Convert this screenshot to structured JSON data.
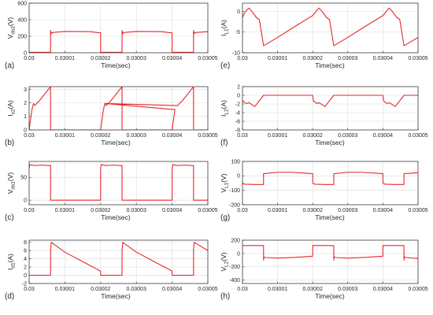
{
  "colors": {
    "trace": "#e8262a",
    "axis": "#262626",
    "grid": "#dcdcdc"
  },
  "chart_data": [
    {
      "panel": "(a)",
      "type": "line",
      "ylabel": "V",
      "ylabel_sub": "ds2",
      "ylabel_unit": "(V)",
      "xlabel": "Time(sec)",
      "xlim": [
        0.03,
        0.03005
      ],
      "ylim": [
        0,
        600
      ],
      "yticks": [
        "0",
        "200",
        "400",
        "600"
      ],
      "xticks": [
        "0.03",
        "0.03001",
        "0.03002",
        "0.03003",
        "0.03004",
        "0.03005"
      ],
      "grid": true,
      "sharp": true,
      "series": [
        {
          "x": [
            0.03,
            0.030006,
            0.030006,
            0.0300062,
            0.0300065,
            0.03001,
            0.030017,
            0.03002,
            0.03002,
            0.030026,
            0.030026,
            0.0300262,
            0.0300265,
            0.03003,
            0.030037,
            0.03004,
            0.03004,
            0.030046,
            0.030046,
            0.0300462,
            0.0300465,
            0.03005
          ],
          "y": [
            5,
            5,
            270,
            230,
            245,
            258,
            255,
            240,
            5,
            5,
            270,
            230,
            245,
            258,
            255,
            240,
            5,
            5,
            270,
            230,
            245,
            255
          ]
        }
      ]
    },
    {
      "panel": "(b)",
      "type": "line",
      "ylabel": "I",
      "ylabel_sub": "s2",
      "ylabel_unit": "(A)",
      "xlabel": "Time(sec)",
      "xlim": [
        0.03,
        0.03005
      ],
      "ylim": [
        0,
        3.2
      ],
      "yticks": [
        "0",
        "1",
        "2",
        "3"
      ],
      "xticks": [
        "0.03",
        "0.03001",
        "0.03002",
        "0.03003",
        "0.03004",
        "0.03005"
      ],
      "grid": true,
      "sharp": true,
      "series": [
        {
          "x": [
            0.03,
            0.0300003,
            0.0300008,
            0.0300012,
            0.0300016,
            0.0300022,
            0.0300027,
            0.030006,
            0.030006,
            0.03002,
            0.03002,
            0.0300203,
            0.0300208,
            0.0300212,
            0.0300216,
            0.0300222,
            0.0300227,
            0.030026,
            0.030026,
            0.03004,
            0.03004,
            0.0300403,
            0.0300408,
            0.0300212,
            0.0300416,
            0.0300422,
            0.0300427,
            0.030046,
            0.030046,
            0.03005
          ],
          "y": [
            0,
            0.6,
            1.5,
            1.95,
            1.8,
            2.0,
            2.1,
            3.2,
            0,
            0,
            0,
            0.6,
            1.5,
            1.95,
            1.8,
            2.0,
            2.1,
            3.2,
            0,
            0,
            0,
            0.6,
            1.5,
            1.95,
            1.8,
            2.0,
            2.1,
            3.2,
            0,
            0
          ]
        }
      ]
    },
    {
      "panel": "(c)",
      "type": "line",
      "ylabel": "V",
      "ylabel_sub": "ds1",
      "ylabel_unit": "(V)",
      "xlabel": "Time(sec)",
      "xlim": [
        0.03,
        0.03005
      ],
      "ylim": [
        -10,
        85
      ],
      "yticks": [
        "0",
        "50"
      ],
      "xticks": [
        "0.03",
        "0.03001",
        "0.03002",
        "0.03003",
        "0.03004",
        "0.03005"
      ],
      "grid": true,
      "sharp": true,
      "series": [
        {
          "x": [
            0.03,
            0.0300002,
            0.0300015,
            0.0300035,
            0.0300055,
            0.030006,
            0.030006,
            0.03002,
            0.03002,
            0.0300202,
            0.0300215,
            0.0300235,
            0.0300255,
            0.030026,
            0.030026,
            0.03004,
            0.03004,
            0.0300402,
            0.0300415,
            0.0300435,
            0.0300455,
            0.030046,
            0.030046,
            0.03005
          ],
          "y": [
            70,
            78,
            76,
            77,
            76,
            76,
            0,
            0,
            70,
            78,
            76,
            77,
            76,
            76,
            0,
            0,
            70,
            78,
            76,
            77,
            76,
            76,
            0,
            0
          ]
        }
      ]
    },
    {
      "panel": "(d)",
      "type": "line",
      "ylabel": "I",
      "ylabel_sub": "d1",
      "ylabel_unit": "(A)",
      "xlabel": "Time(sec)",
      "xlim": [
        0.03,
        0.03005
      ],
      "ylim": [
        -2,
        8.5
      ],
      "yticks": [
        "-2",
        "0",
        "2",
        "4",
        "6",
        "8"
      ],
      "xticks": [
        "0.03",
        "0.03001",
        "0.03002",
        "0.03003",
        "0.03004",
        "0.03005"
      ],
      "grid": true,
      "sharp": true,
      "series": [
        {
          "x": [
            0.03,
            0.030006,
            0.030006,
            0.0300062,
            0.0300065,
            0.03001,
            0.030015,
            0.03002,
            0.03002,
            0.030026,
            0.030026,
            0.0300262,
            0.0300265,
            0.03003,
            0.030035,
            0.03004,
            0.03004,
            0.030046,
            0.030046,
            0.0300462,
            0.0300465,
            0.03005
          ],
          "y": [
            0,
            0,
            6,
            8,
            7.8,
            5.6,
            3.3,
            1.0,
            0,
            0,
            6,
            8,
            7.8,
            5.6,
            3.3,
            1.0,
            0,
            0,
            6,
            8,
            7.8,
            6.0
          ]
        }
      ]
    },
    {
      "panel": "(e)",
      "type": "line",
      "ylabel": "I",
      "ylabel_sub": "L1",
      "ylabel_unit": "(A)",
      "xlabel": "Time(sec)",
      "xlim": [
        0.03,
        0.03005
      ],
      "ylim": [
        -10,
        2
      ],
      "yticks": [
        "-10",
        "-5",
        "0"
      ],
      "xticks": [
        "0.03",
        "0.03001",
        "0.03002",
        "0.03003",
        "0.03004",
        "0.03005"
      ],
      "grid": true,
      "sharp": false,
      "series": [
        {
          "x": [
            0.03,
            0.0300005,
            0.0300012,
            0.0300018,
            0.0300025,
            0.030004,
            0.0300048,
            0.030006,
            0.03001,
            0.030015,
            0.03002,
            0.0300205,
            0.0300212,
            0.0300218,
            0.0300225,
            0.030024,
            0.0300248,
            0.030026,
            0.03003,
            0.030035,
            0.03004,
            0.0300405,
            0.0300412,
            0.0300418,
            0.0300425,
            0.030044,
            0.0300448,
            0.030046,
            0.03005
          ],
          "y": [
            -1.5,
            -0.5,
            0.3,
            0.8,
            0.2,
            -1.5,
            -2.0,
            -8.3,
            -6.3,
            -3.6,
            -1.0,
            -0.5,
            0.3,
            0.8,
            0.2,
            -1.5,
            -2.0,
            -8.3,
            -6.3,
            -3.6,
            -1.0,
            -0.5,
            0.3,
            0.8,
            0.2,
            -1.5,
            -2.0,
            -8.3,
            -6.3
          ]
        }
      ]
    },
    {
      "panel": "(f)",
      "type": "line",
      "ylabel": "I",
      "ylabel_sub": "L2",
      "ylabel_unit": "(A)",
      "xlabel": "Time(sec)",
      "xlim": [
        0.03,
        0.03005
      ],
      "ylim": [
        -8,
        2
      ],
      "yticks": [
        "-8",
        "-6",
        "-4",
        "-2",
        "0",
        "2"
      ],
      "xticks": [
        "0.03",
        "0.03001",
        "0.03002",
        "0.03003",
        "0.03004",
        "0.03005"
      ],
      "grid": true,
      "sharp": false,
      "series": [
        {
          "x": [
            0.03,
            0.0300005,
            0.0300012,
            0.0300018,
            0.0300026,
            0.0300035,
            0.030006,
            0.030006,
            0.03002,
            0.0300202,
            0.0300212,
            0.0300218,
            0.0300226,
            0.0300235,
            0.030026,
            0.030026,
            0.03004,
            0.0300402,
            0.0300412,
            0.0300418,
            0.0300426,
            0.0300435,
            0.030046,
            0.030046,
            0.03005
          ],
          "y": [
            -1.2,
            -1.6,
            -1.9,
            -1.7,
            -2.1,
            -2.6,
            0,
            0,
            0,
            -1.3,
            -1.9,
            -1.7,
            -2.1,
            -2.6,
            0,
            0,
            0,
            -1.3,
            -1.9,
            -1.7,
            -2.1,
            -2.6,
            0,
            0,
            0
          ]
        }
      ]
    },
    {
      "panel": "(g)",
      "type": "line",
      "ylabel": "V",
      "ylabel_sub": "L1",
      "ylabel_unit": "(V)",
      "xlabel": "Time(sec)",
      "xlim": [
        0.03,
        0.03005
      ],
      "ylim": [
        -200,
        100
      ],
      "yticks": [
        "-200",
        "-100",
        "0",
        "100"
      ],
      "xticks": [
        "0.03",
        "0.03001",
        "0.03002",
        "0.03003",
        "0.03004",
        "0.03005"
      ],
      "grid": true,
      "sharp": true,
      "series": [
        {
          "x": [
            0.03,
            0.0300002,
            0.0300008,
            0.0300035,
            0.030006,
            0.030006,
            0.03001,
            0.030014,
            0.03002,
            0.03002,
            0.0300202,
            0.0300208,
            0.0300235,
            0.030026,
            0.030026,
            0.03003,
            0.030034,
            0.03004,
            0.03004,
            0.0300402,
            0.0300408,
            0.0300435,
            0.030046,
            0.030046,
            0.03005
          ],
          "y": [
            -45,
            -55,
            -58,
            -60,
            -60,
            15,
            25,
            25,
            15,
            -45,
            -55,
            -58,
            -60,
            -60,
            15,
            25,
            25,
            15,
            -45,
            -55,
            -58,
            -60,
            -60,
            15,
            22
          ]
        }
      ]
    },
    {
      "panel": "(h)",
      "type": "line",
      "ylabel": "V",
      "ylabel_sub": "L2",
      "ylabel_unit": "(V)",
      "xlabel": "Time(sec)",
      "xlim": [
        0.03,
        0.03005
      ],
      "ylim": [
        -450,
        200
      ],
      "yticks": [
        "-400",
        "-200",
        "0",
        "200"
      ],
      "xticks": [
        "0.03",
        "0.03001",
        "0.03002",
        "0.03003",
        "0.03004",
        "0.03005"
      ],
      "grid": true,
      "sharp": true,
      "series": [
        {
          "x": [
            0.03,
            0.030006,
            0.030006,
            0.0300061,
            0.0300065,
            0.03001,
            0.030015,
            0.03002,
            0.03002,
            0.030026,
            0.030026,
            0.0300261,
            0.0300265,
            0.03003,
            0.030035,
            0.03004,
            0.03004,
            0.030046,
            0.030046,
            0.0300461,
            0.0300465,
            0.03005
          ],
          "y": [
            120,
            120,
            -100,
            -50,
            -60,
            -70,
            -58,
            -40,
            120,
            120,
            -100,
            -50,
            -60,
            -70,
            -58,
            -40,
            120,
            120,
            -100,
            -50,
            -60,
            -75
          ]
        }
      ]
    }
  ]
}
